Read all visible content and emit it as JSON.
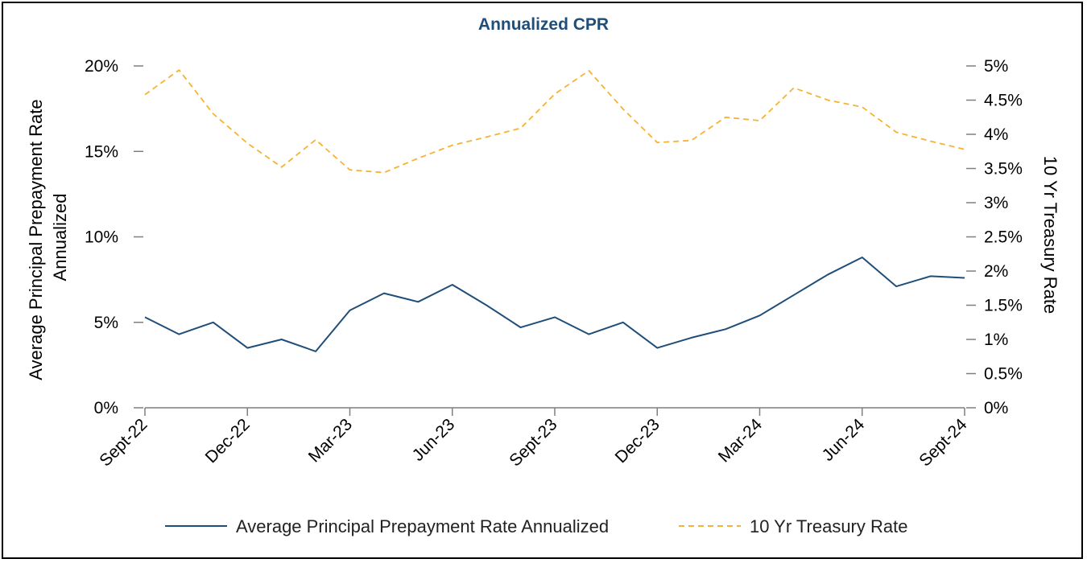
{
  "chart_data": {
    "type": "line",
    "title": "Annualized CPR",
    "categories": [
      "Sept-22",
      "Oct-22",
      "Nov-22",
      "Dec-22",
      "Jan-23",
      "Feb-23",
      "Mar-23",
      "Apr-23",
      "May-23",
      "Jun-23",
      "Jul-23",
      "Aug-23",
      "Sept-23",
      "Oct-23",
      "Nov-23",
      "Dec-23",
      "Jan-24",
      "Feb-24",
      "Mar-24",
      "Apr-24",
      "May-24",
      "Jun-24",
      "Jul-24",
      "Aug-24",
      "Sept-24"
    ],
    "x_tick_labels": [
      "Sept-22",
      "Dec-22",
      "Mar-23",
      "Jun-23",
      "Sept-23",
      "Dec-23",
      "Mar-24",
      "Jun-24",
      "Sept-24"
    ],
    "ylabel_left": "Average Principal Prepayment Rate Annualized",
    "ylabel_right": "10 Yr Treasury Rate",
    "ylim_left": [
      0,
      20
    ],
    "ylim_right": [
      0,
      5
    ],
    "left_ticks": [
      "0%",
      "5%",
      "10%",
      "15%",
      "20%"
    ],
    "right_ticks": [
      "0%",
      "0.5%",
      "1%",
      "1.5%",
      "2%",
      "2.5%",
      "3%",
      "3.5%",
      "4%",
      "4.5%",
      "5%"
    ],
    "series": [
      {
        "name": "Average Principal Prepayment Rate Annualized",
        "axis": "left",
        "color": "#1f4e79",
        "style": "solid",
        "values": [
          5.3,
          4.3,
          5.0,
          3.5,
          4.0,
          3.3,
          5.7,
          6.7,
          6.2,
          7.2,
          6.0,
          4.7,
          5.3,
          4.3,
          5.0,
          3.5,
          4.1,
          4.6,
          5.4,
          6.6,
          7.8,
          8.8,
          7.1,
          7.7,
          7.6
        ]
      },
      {
        "name": "10 Yr Treasury Rate",
        "axis": "right",
        "color": "#f5b335",
        "style": "dashed",
        "values": [
          4.58,
          4.94,
          4.3,
          3.87,
          3.52,
          3.92,
          3.48,
          3.44,
          3.65,
          3.84,
          3.96,
          4.09,
          4.59,
          4.93,
          4.37,
          3.88,
          3.91,
          4.25,
          4.2,
          4.68,
          4.5,
          4.4,
          4.03,
          3.9,
          3.78
        ]
      }
    ],
    "legend_position": "bottom"
  }
}
